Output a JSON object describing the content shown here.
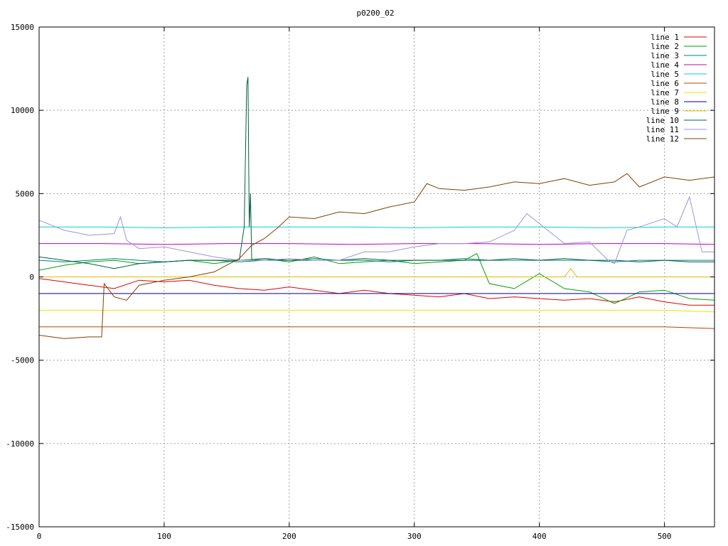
{
  "chart_data": {
    "type": "line",
    "title": "p0200_02",
    "xlabel": "",
    "ylabel": "",
    "xlim": [
      0,
      540
    ],
    "ylim": [
      -15000,
      15000
    ],
    "xticks": [
      0,
      100,
      200,
      300,
      400,
      500
    ],
    "yticks": [
      -15000,
      -10000,
      -5000,
      0,
      5000,
      10000,
      15000
    ],
    "grid": true,
    "legend_position": "top-right",
    "series": [
      {
        "name": "line 1",
        "color": "#e00000",
        "points": [
          [
            0,
            -100
          ],
          [
            20,
            -300
          ],
          [
            40,
            -500
          ],
          [
            60,
            -700
          ],
          [
            80,
            -200
          ],
          [
            100,
            -300
          ],
          [
            120,
            -200
          ],
          [
            140,
            -500
          ],
          [
            160,
            -700
          ],
          [
            180,
            -800
          ],
          [
            200,
            -600
          ],
          [
            220,
            -800
          ],
          [
            240,
            -1000
          ],
          [
            260,
            -800
          ],
          [
            280,
            -1000
          ],
          [
            300,
            -1100
          ],
          [
            320,
            -1200
          ],
          [
            340,
            -1000
          ],
          [
            360,
            -1300
          ],
          [
            380,
            -1200
          ],
          [
            400,
            -1300
          ],
          [
            420,
            -1400
          ],
          [
            440,
            -1300
          ],
          [
            460,
            -1500
          ],
          [
            480,
            -1200
          ],
          [
            500,
            -1500
          ],
          [
            520,
            -1700
          ],
          [
            540,
            -1700
          ]
        ]
      },
      {
        "name": "line 2",
        "color": "#00a000",
        "points": [
          [
            0,
            400
          ],
          [
            20,
            700
          ],
          [
            40,
            900
          ],
          [
            60,
            1000
          ],
          [
            80,
            800
          ],
          [
            100,
            900
          ],
          [
            120,
            1000
          ],
          [
            140,
            800
          ],
          [
            160,
            1000
          ],
          [
            180,
            1100
          ],
          [
            200,
            900
          ],
          [
            220,
            1200
          ],
          [
            240,
            800
          ],
          [
            260,
            900
          ],
          [
            280,
            1000
          ],
          [
            300,
            800
          ],
          [
            320,
            900
          ],
          [
            340,
            1000
          ],
          [
            350,
            1400
          ],
          [
            360,
            -400
          ],
          [
            380,
            -700
          ],
          [
            400,
            200
          ],
          [
            420,
            -700
          ],
          [
            440,
            -900
          ],
          [
            460,
            -1600
          ],
          [
            480,
            -900
          ],
          [
            500,
            -800
          ],
          [
            520,
            -1300
          ],
          [
            540,
            -1400
          ]
        ]
      },
      {
        "name": "line 3",
        "color": "#008080",
        "points": [
          [
            0,
            1000
          ],
          [
            20,
            900
          ],
          [
            40,
            1000
          ],
          [
            60,
            1100
          ],
          [
            80,
            1000
          ],
          [
            100,
            900
          ],
          [
            120,
            1000
          ],
          [
            140,
            1000
          ],
          [
            160,
            900
          ],
          [
            180,
            1000
          ],
          [
            200,
            1000
          ],
          [
            220,
            1100
          ],
          [
            240,
            1000
          ],
          [
            260,
            1000
          ],
          [
            280,
            900
          ],
          [
            300,
            1000
          ],
          [
            320,
            1000
          ],
          [
            340,
            1100
          ],
          [
            360,
            1000
          ],
          [
            380,
            1000
          ],
          [
            400,
            1000
          ],
          [
            420,
            1000
          ],
          [
            440,
            1000
          ],
          [
            460,
            900
          ],
          [
            480,
            1000
          ],
          [
            500,
            1000
          ],
          [
            520,
            1000
          ],
          [
            540,
            1000
          ]
        ]
      },
      {
        "name": "line 4",
        "color": "#c000c0",
        "points": [
          [
            0,
            2000
          ],
          [
            50,
            2000
          ],
          [
            100,
            1950
          ],
          [
            150,
            2000
          ],
          [
            200,
            2000
          ],
          [
            250,
            1950
          ],
          [
            300,
            2000
          ],
          [
            350,
            2000
          ],
          [
            400,
            1950
          ],
          [
            450,
            2000
          ],
          [
            500,
            2000
          ],
          [
            540,
            1950
          ]
        ]
      },
      {
        "name": "line 5",
        "color": "#00d0d0",
        "points": [
          [
            0,
            3000
          ],
          [
            50,
            3000
          ],
          [
            100,
            2950
          ],
          [
            150,
            3000
          ],
          [
            200,
            3000
          ],
          [
            250,
            3000
          ],
          [
            300,
            2950
          ],
          [
            350,
            3000
          ],
          [
            400,
            3000
          ],
          [
            450,
            2950
          ],
          [
            500,
            3000
          ],
          [
            540,
            3000
          ]
        ]
      },
      {
        "name": "line 6",
        "color": "#c04000",
        "points": [
          [
            0,
            -3000
          ],
          [
            50,
            -3000
          ],
          [
            100,
            -3000
          ],
          [
            150,
            -3000
          ],
          [
            200,
            -3000
          ],
          [
            250,
            -3000
          ],
          [
            300,
            -3000
          ],
          [
            350,
            -3000
          ],
          [
            400,
            -3000
          ],
          [
            450,
            -3000
          ],
          [
            500,
            -3000
          ],
          [
            540,
            -3100
          ]
        ]
      },
      {
        "name": "line 7",
        "color": "#f0e000",
        "points": [
          [
            0,
            -2000
          ],
          [
            50,
            -2000
          ],
          [
            100,
            -2000
          ],
          [
            150,
            -2000
          ],
          [
            200,
            -2000
          ],
          [
            250,
            -2000
          ],
          [
            300,
            -2000
          ],
          [
            350,
            -2000
          ],
          [
            400,
            -2000
          ],
          [
            450,
            -2000
          ],
          [
            500,
            -2000
          ],
          [
            540,
            -2100
          ]
        ]
      },
      {
        "name": "line 8",
        "color": "#0000a0",
        "points": [
          [
            0,
            -1000
          ],
          [
            50,
            -1000
          ],
          [
            100,
            -1000
          ],
          [
            150,
            -1000
          ],
          [
            200,
            -1000
          ],
          [
            250,
            -1000
          ],
          [
            300,
            -1000
          ],
          [
            350,
            -1000
          ],
          [
            400,
            -1000
          ],
          [
            450,
            -1000
          ],
          [
            500,
            -1000
          ],
          [
            540,
            -1000
          ]
        ]
      },
      {
        "name": "line 9",
        "color": "#e0c000",
        "points": [
          [
            0,
            0
          ],
          [
            50,
            0
          ],
          [
            100,
            0
          ],
          [
            150,
            0
          ],
          [
            200,
            0
          ],
          [
            250,
            0
          ],
          [
            300,
            0
          ],
          [
            350,
            0
          ],
          [
            400,
            0
          ],
          [
            420,
            0
          ],
          [
            425,
            500
          ],
          [
            430,
            0
          ],
          [
            450,
            0
          ],
          [
            500,
            0
          ],
          [
            540,
            0
          ]
        ]
      },
      {
        "name": "line 10",
        "color": "#006040",
        "points": [
          [
            0,
            1200
          ],
          [
            20,
            1000
          ],
          [
            40,
            800
          ],
          [
            60,
            500
          ],
          [
            80,
            800
          ],
          [
            100,
            900
          ],
          [
            120,
            1000
          ],
          [
            140,
            1000
          ],
          [
            160,
            1000
          ],
          [
            164,
            3000
          ],
          [
            166,
            11500
          ],
          [
            167,
            12000
          ],
          [
            168,
            3000
          ],
          [
            169,
            5000
          ],
          [
            170,
            1000
          ],
          [
            180,
            1100
          ],
          [
            200,
            1000
          ],
          [
            220,
            1000
          ],
          [
            240,
            1000
          ],
          [
            260,
            1100
          ],
          [
            280,
            1000
          ],
          [
            300,
            1000
          ],
          [
            320,
            1000
          ],
          [
            340,
            1000
          ],
          [
            360,
            1000
          ],
          [
            380,
            1100
          ],
          [
            400,
            1000
          ],
          [
            420,
            1100
          ],
          [
            440,
            1000
          ],
          [
            460,
            1000
          ],
          [
            480,
            900
          ],
          [
            500,
            1000
          ],
          [
            520,
            900
          ],
          [
            540,
            900
          ]
        ]
      },
      {
        "name": "line 11",
        "color": "#a090e0",
        "points": [
          [
            0,
            3400
          ],
          [
            20,
            2800
          ],
          [
            40,
            2500
          ],
          [
            60,
            2600
          ],
          [
            65,
            3600
          ],
          [
            70,
            2200
          ],
          [
            80,
            1700
          ],
          [
            100,
            1800
          ],
          [
            120,
            1500
          ],
          [
            140,
            1200
          ],
          [
            160,
            1000
          ],
          [
            180,
            1000
          ],
          [
            200,
            1100
          ],
          [
            220,
            1000
          ],
          [
            240,
            1000
          ],
          [
            260,
            1500
          ],
          [
            280,
            1500
          ],
          [
            300,
            1800
          ],
          [
            320,
            2000
          ],
          [
            340,
            2000
          ],
          [
            360,
            2100
          ],
          [
            380,
            2800
          ],
          [
            390,
            3800
          ],
          [
            400,
            3200
          ],
          [
            420,
            2000
          ],
          [
            440,
            2100
          ],
          [
            455,
            1000
          ],
          [
            460,
            800
          ],
          [
            470,
            2800
          ],
          [
            480,
            3000
          ],
          [
            500,
            3500
          ],
          [
            510,
            3000
          ],
          [
            520,
            4800
          ],
          [
            530,
            1500
          ],
          [
            540,
            1500
          ]
        ]
      },
      {
        "name": "line 12",
        "color": "#804000",
        "points": [
          [
            0,
            -3500
          ],
          [
            20,
            -3700
          ],
          [
            40,
            -3600
          ],
          [
            50,
            -3600
          ],
          [
            52,
            -400
          ],
          [
            60,
            -1200
          ],
          [
            70,
            -1400
          ],
          [
            80,
            -500
          ],
          [
            100,
            -200
          ],
          [
            120,
            0
          ],
          [
            140,
            300
          ],
          [
            160,
            1100
          ],
          [
            170,
            1900
          ],
          [
            180,
            2300
          ],
          [
            190,
            2900
          ],
          [
            200,
            3600
          ],
          [
            220,
            3500
          ],
          [
            240,
            3900
          ],
          [
            260,
            3800
          ],
          [
            280,
            4200
          ],
          [
            300,
            4500
          ],
          [
            310,
            5600
          ],
          [
            320,
            5300
          ],
          [
            340,
            5200
          ],
          [
            360,
            5400
          ],
          [
            380,
            5700
          ],
          [
            400,
            5600
          ],
          [
            420,
            5900
          ],
          [
            440,
            5500
          ],
          [
            460,
            5700
          ],
          [
            470,
            6200
          ],
          [
            480,
            5400
          ],
          [
            500,
            6000
          ],
          [
            520,
            5800
          ],
          [
            540,
            6000
          ]
        ]
      }
    ]
  }
}
